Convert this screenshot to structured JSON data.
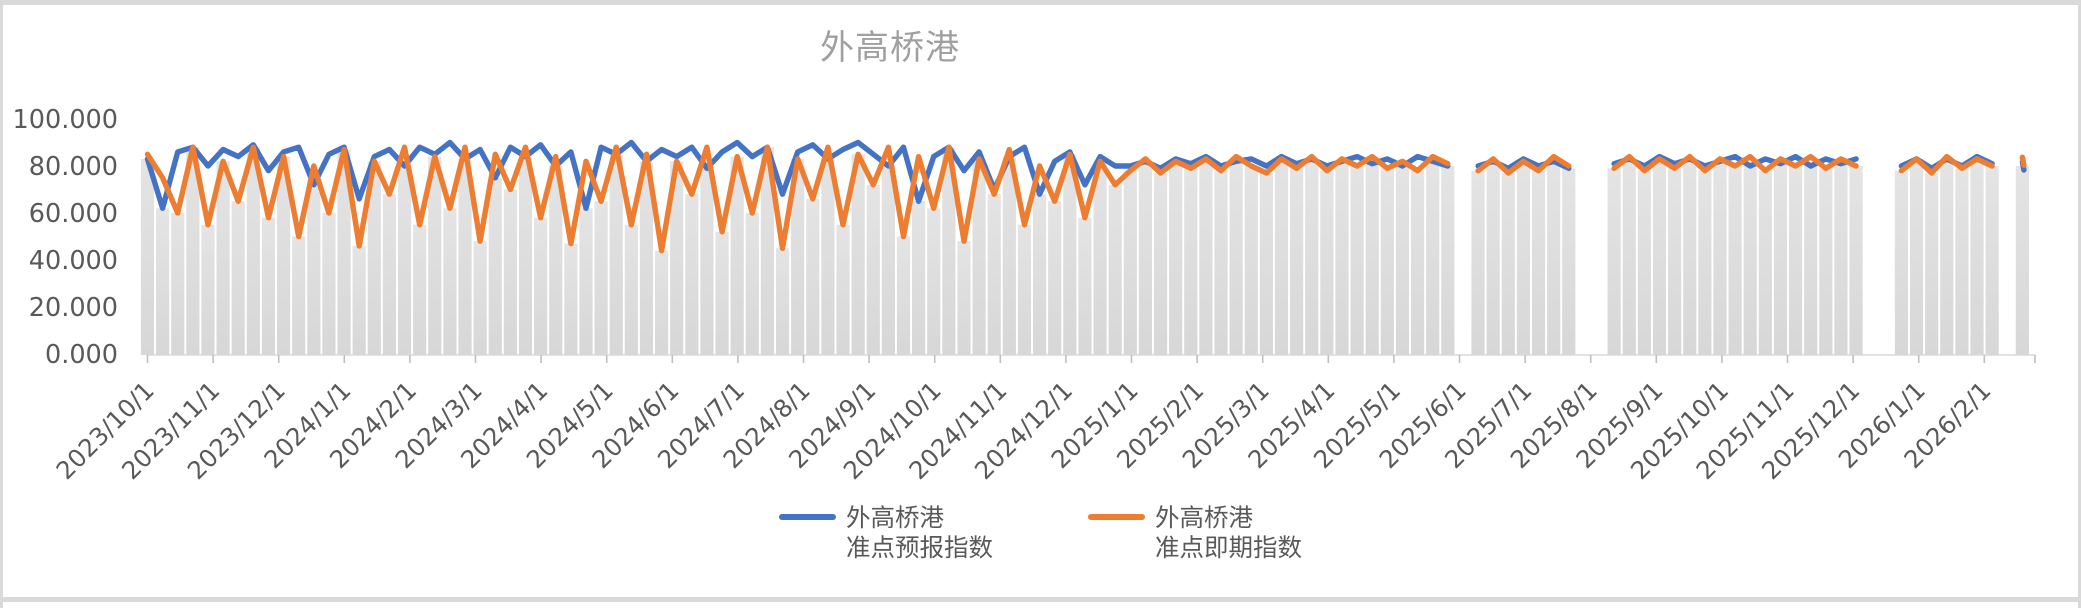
{
  "title": "外高桥港",
  "legend": {
    "items": [
      {
        "line1": "外高桥港",
        "line2": "准点预报指数",
        "color": "#4472C4"
      },
      {
        "line1": "外高桥港",
        "line2": "准点即期指数",
        "color": "#ED7D31"
      }
    ]
  },
  "chart_data": {
    "type": "line",
    "title": "外高桥港",
    "title_color": "#A0A0A0",
    "axis_text_color": "#595959",
    "grid": false,
    "legend_position": "bottom",
    "x_axis": {
      "start": "2023/10/1",
      "end": "2026/2/1",
      "tick_labels": [
        "2023/10/1",
        "2023/11/1",
        "2023/12/1",
        "2024/1/1",
        "2024/2/1",
        "2024/3/1",
        "2024/4/1",
        "2024/5/1",
        "2024/6/1",
        "2024/7/1",
        "2024/8/1",
        "2024/9/1",
        "2024/10/1",
        "2024/11/1",
        "2024/12/1",
        "2025/1/1",
        "2025/2/1",
        "2025/3/1",
        "2025/4/1",
        "2025/5/1",
        "2025/6/1",
        "2025/7/1",
        "2025/8/1",
        "2025/9/1",
        "2025/10/1",
        "2025/11/1",
        "2025/12/1",
        "2026/1/1",
        "2026/2/1"
      ]
    },
    "y_axis": {
      "min": 0,
      "max": 100,
      "tick_values": [
        0,
        20,
        40,
        60,
        80,
        100
      ],
      "tick_labels": [
        "0.000",
        "20.000",
        "40.000",
        "60.000",
        "80.000",
        "100.000"
      ]
    },
    "sample_interval_days": 7,
    "background_bars": {
      "color_top": "#E4E4E4",
      "color_bottom": "#D7D7D7",
      "derived_from": "min of the two series at each point"
    },
    "series": [
      {
        "name": "外高桥港准点预报指数",
        "color": "#4472C4",
        "values": [
          83,
          62,
          86,
          88,
          80,
          87,
          84,
          89,
          78,
          86,
          88,
          72,
          85,
          88,
          66,
          84,
          87,
          80,
          88,
          85,
          90,
          83,
          87,
          75,
          88,
          84,
          89,
          80,
          86,
          62,
          88,
          85,
          90,
          82,
          87,
          84,
          88,
          79,
          86,
          90,
          84,
          88,
          68,
          86,
          89,
          83,
          87,
          90,
          85,
          80,
          88,
          65,
          84,
          88,
          78,
          86,
          70,
          84,
          88,
          68,
          82,
          86,
          72,
          84,
          80,
          80,
          82,
          79,
          83,
          81,
          84,
          80,
          82,
          83,
          80,
          84,
          81,
          83,
          80,
          82,
          84,
          81,
          83,
          80,
          84,
          82,
          80,
          null,
          80,
          82,
          79,
          83,
          80,
          82,
          79,
          null,
          null,
          81,
          83,
          80,
          84,
          81,
          83,
          80,
          82,
          84,
          80,
          83,
          81,
          84,
          80,
          83,
          81,
          83,
          null,
          null,
          80,
          83,
          79,
          83,
          80,
          84,
          81,
          null,
          80
        ]
      },
      {
        "name": "外高桥港准点即期指数",
        "color": "#ED7D31",
        "values": [
          85,
          75,
          60,
          88,
          55,
          82,
          65,
          88,
          58,
          84,
          50,
          80,
          60,
          87,
          46,
          82,
          68,
          88,
          55,
          84,
          62,
          88,
          48,
          85,
          70,
          88,
          58,
          84,
          47,
          82,
          65,
          88,
          55,
          85,
          44,
          82,
          68,
          88,
          52,
          84,
          60,
          88,
          45,
          83,
          66,
          88,
          55,
          85,
          72,
          88,
          50,
          84,
          62,
          88,
          48,
          83,
          68,
          87,
          55,
          80,
          65,
          85,
          58,
          82,
          72,
          78,
          83,
          77,
          82,
          79,
          83,
          78,
          84,
          80,
          77,
          83,
          79,
          84,
          78,
          83,
          80,
          84,
          79,
          82,
          78,
          84,
          81,
          null,
          78,
          83,
          77,
          82,
          78,
          84,
          80,
          null,
          null,
          79,
          84,
          78,
          83,
          79,
          84,
          78,
          83,
          80,
          84,
          78,
          83,
          80,
          84,
          79,
          83,
          80,
          null,
          null,
          78,
          83,
          77,
          84,
          79,
          83,
          80,
          null,
          82
        ]
      }
    ]
  }
}
